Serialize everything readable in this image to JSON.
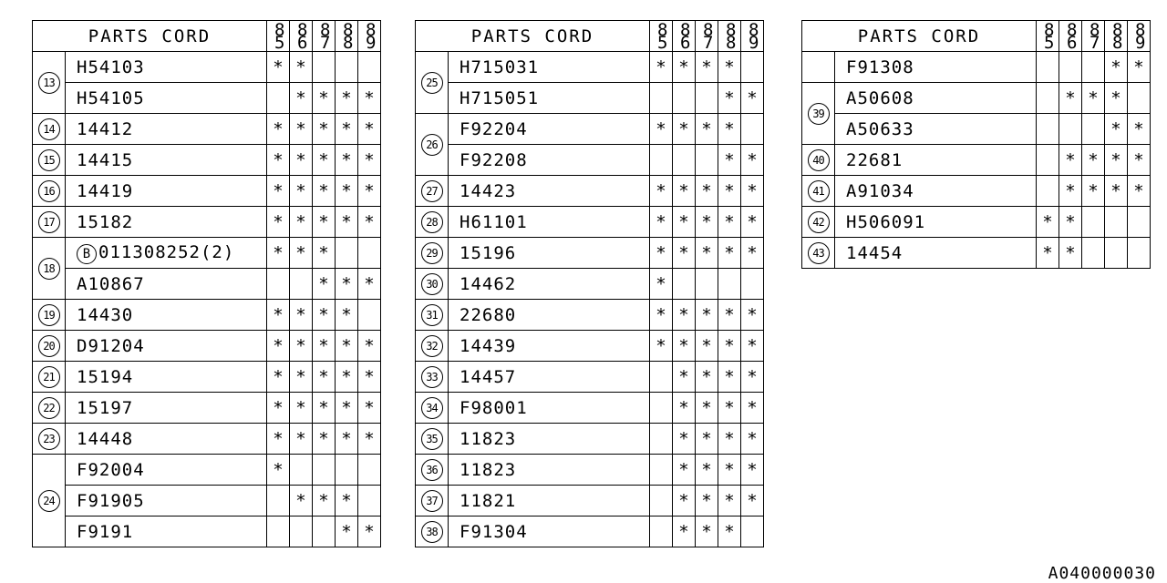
{
  "header": {
    "title": "PARTS CORD",
    "years": [
      "85",
      "86",
      "87",
      "88",
      "89"
    ]
  },
  "tables": [
    {
      "groups": [
        {
          "num": "13",
          "parts": [
            {
              "code": "H54103",
              "marks": [
                "*",
                "*",
                "",
                "",
                ""
              ]
            },
            {
              "code": "H54105",
              "marks": [
                "",
                "*",
                "*",
                "*",
                "*"
              ]
            }
          ]
        },
        {
          "num": "14",
          "parts": [
            {
              "code": "14412",
              "marks": [
                "*",
                "*",
                "*",
                "*",
                "*"
              ]
            }
          ]
        },
        {
          "num": "15",
          "parts": [
            {
              "code": "14415",
              "marks": [
                "*",
                "*",
                "*",
                "*",
                "*"
              ]
            }
          ]
        },
        {
          "num": "16",
          "parts": [
            {
              "code": "14419",
              "marks": [
                "*",
                "*",
                "*",
                "*",
                "*"
              ]
            }
          ]
        },
        {
          "num": "17",
          "parts": [
            {
              "code": "15182",
              "marks": [
                "*",
                "*",
                "*",
                "*",
                "*"
              ]
            }
          ]
        },
        {
          "num": "18",
          "parts": [
            {
              "prefix": "B",
              "code": "011308252(2)",
              "marks": [
                "*",
                "*",
                "*",
                "",
                ""
              ]
            },
            {
              "code": "A10867",
              "marks": [
                "",
                "",
                "*",
                "*",
                "*"
              ]
            }
          ]
        },
        {
          "num": "19",
          "parts": [
            {
              "code": "14430",
              "marks": [
                "*",
                "*",
                "*",
                "*",
                ""
              ]
            }
          ]
        },
        {
          "num": "20",
          "parts": [
            {
              "code": "D91204",
              "marks": [
                "*",
                "*",
                "*",
                "*",
                "*"
              ]
            }
          ]
        },
        {
          "num": "21",
          "parts": [
            {
              "code": "15194",
              "marks": [
                "*",
                "*",
                "*",
                "*",
                "*"
              ]
            }
          ]
        },
        {
          "num": "22",
          "parts": [
            {
              "code": "15197",
              "marks": [
                "*",
                "*",
                "*",
                "*",
                "*"
              ]
            }
          ]
        },
        {
          "num": "23",
          "parts": [
            {
              "code": "14448",
              "marks": [
                "*",
                "*",
                "*",
                "*",
                "*"
              ]
            }
          ]
        },
        {
          "num": "24",
          "parts": [
            {
              "code": "F92004",
              "marks": [
                "*",
                "",
                "",
                "",
                ""
              ]
            },
            {
              "code": "F91905",
              "marks": [
                "",
                "*",
                "*",
                "*",
                ""
              ]
            },
            {
              "code": "F9191",
              "marks": [
                "",
                "",
                "",
                "*",
                "*"
              ]
            }
          ]
        }
      ]
    },
    {
      "groups": [
        {
          "num": "25",
          "parts": [
            {
              "code": "H715031",
              "marks": [
                "*",
                "*",
                "*",
                "*",
                ""
              ]
            },
            {
              "code": "H715051",
              "marks": [
                "",
                "",
                "",
                "*",
                "*"
              ]
            }
          ]
        },
        {
          "num": "26",
          "parts": [
            {
              "code": "F92204",
              "marks": [
                "*",
                "*",
                "*",
                "*",
                ""
              ]
            },
            {
              "code": "F92208",
              "marks": [
                "",
                "",
                "",
                "*",
                "*"
              ]
            }
          ]
        },
        {
          "num": "27",
          "parts": [
            {
              "code": "14423",
              "marks": [
                "*",
                "*",
                "*",
                "*",
                "*"
              ]
            }
          ]
        },
        {
          "num": "28",
          "parts": [
            {
              "code": "H61101",
              "marks": [
                "*",
                "*",
                "*",
                "*",
                "*"
              ]
            }
          ]
        },
        {
          "num": "29",
          "parts": [
            {
              "code": "15196",
              "marks": [
                "*",
                "*",
                "*",
                "*",
                "*"
              ]
            }
          ]
        },
        {
          "num": "30",
          "parts": [
            {
              "code": "14462",
              "marks": [
                "*",
                "",
                "",
                "",
                ""
              ]
            }
          ]
        },
        {
          "num": "31",
          "parts": [
            {
              "code": "22680",
              "marks": [
                "*",
                "*",
                "*",
                "*",
                "*"
              ]
            }
          ]
        },
        {
          "num": "32",
          "parts": [
            {
              "code": "14439",
              "marks": [
                "*",
                "*",
                "*",
                "*",
                "*"
              ]
            }
          ]
        },
        {
          "num": "33",
          "parts": [
            {
              "code": "14457",
              "marks": [
                "",
                "*",
                "*",
                "*",
                "*"
              ]
            }
          ]
        },
        {
          "num": "34",
          "parts": [
            {
              "code": "F98001",
              "marks": [
                "",
                "*",
                "*",
                "*",
                "*"
              ]
            }
          ]
        },
        {
          "num": "35",
          "parts": [
            {
              "code": "11823",
              "marks": [
                "",
                "*",
                "*",
                "*",
                "*"
              ]
            }
          ]
        },
        {
          "num": "36",
          "parts": [
            {
              "code": "11823",
              "marks": [
                "",
                "*",
                "*",
                "*",
                "*"
              ]
            }
          ]
        },
        {
          "num": "37",
          "parts": [
            {
              "code": "11821",
              "marks": [
                "",
                "*",
                "*",
                "*",
                "*"
              ]
            }
          ]
        },
        {
          "num": "38",
          "parts": [
            {
              "code": "F91304",
              "marks": [
                "",
                "*",
                "*",
                "*",
                ""
              ]
            }
          ]
        }
      ]
    },
    {
      "groups": [
        {
          "num": "",
          "parts": [
            {
              "code": "F91308",
              "marks": [
                "",
                "",
                "",
                "*",
                "*"
              ]
            }
          ]
        },
        {
          "num": "39",
          "parts": [
            {
              "code": "A50608",
              "marks": [
                "",
                "*",
                "*",
                "*",
                ""
              ]
            },
            {
              "code": "A50633",
              "marks": [
                "",
                "",
                "",
                "*",
                "*"
              ]
            }
          ]
        },
        {
          "num": "40",
          "parts": [
            {
              "code": "22681",
              "marks": [
                "",
                "*",
                "*",
                "*",
                "*"
              ]
            }
          ]
        },
        {
          "num": "41",
          "parts": [
            {
              "code": "A91034",
              "marks": [
                "",
                "*",
                "*",
                "*",
                "*"
              ]
            }
          ]
        },
        {
          "num": "42",
          "parts": [
            {
              "code": "H506091",
              "marks": [
                "*",
                "*",
                "",
                "",
                ""
              ]
            }
          ]
        },
        {
          "num": "43",
          "parts": [
            {
              "code": "14454",
              "marks": [
                "*",
                "*",
                "",
                "",
                ""
              ]
            }
          ]
        }
      ]
    }
  ],
  "footer": {
    "code": "A040000030"
  }
}
